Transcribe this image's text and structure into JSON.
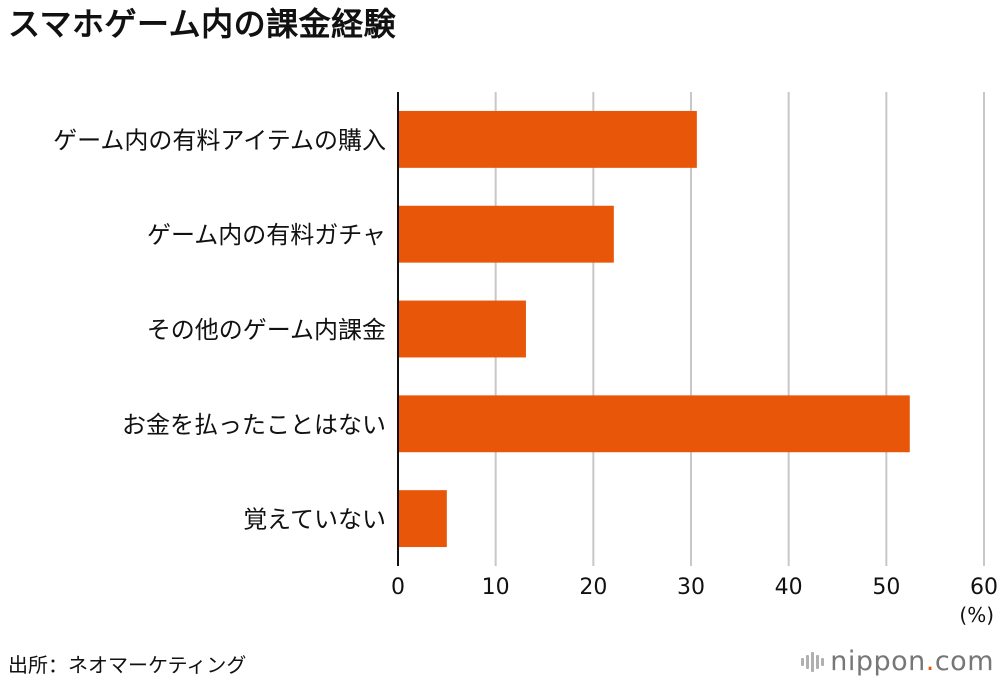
{
  "title": "スマホゲーム内の課金経験",
  "source": "出所：ネオマーケティング",
  "brand": {
    "name": "nippon",
    "dot": ".",
    "suffix": "com",
    "icon": "nippon-logo-icon"
  },
  "colors": {
    "bar": "#e8560a",
    "grid": "#c8c8c8",
    "axis": "#111111",
    "text": "#111111",
    "brand_text": "#777777"
  },
  "chart_data": {
    "type": "bar",
    "orientation": "horizontal",
    "title": "スマホゲーム内の課金経験",
    "categories": [
      "ゲーム内の有料アイテムの購入",
      "ゲーム内の有料ガチャ",
      "その他のゲーム内課金",
      "お金を払ったことはない",
      "覚えていない"
    ],
    "values": [
      30.6,
      22.1,
      13.1,
      52.4,
      5.0
    ],
    "xlim": [
      0,
      60
    ],
    "xticks": [
      "0",
      "10",
      "20",
      "30",
      "40",
      "50",
      "60"
    ],
    "xticks_values": [
      0,
      10,
      20,
      30,
      40,
      50,
      60
    ],
    "xunit": "(%)",
    "grid": true
  }
}
